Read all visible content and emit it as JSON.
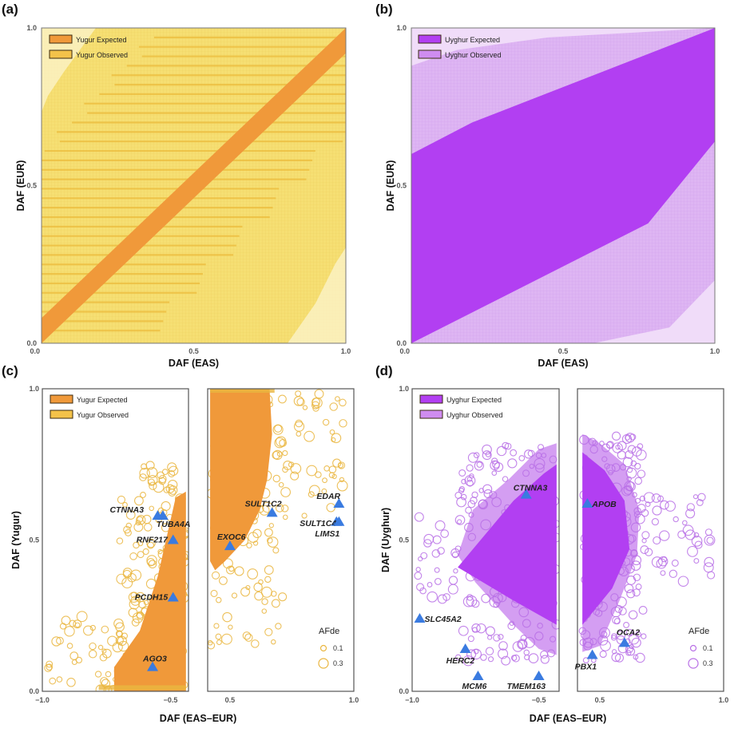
{
  "colors": {
    "yugur_expected": "#f0993a",
    "yugur_observed": "#f3c24a",
    "yugur_observed_bg": "#f7e27a",
    "uyghur_expected": "#b23ff2",
    "uyghur_observed": "#cf8cf0",
    "uyghur_observed_bg": "#e6c6f6",
    "gene_marker": "#3a7be0",
    "frame": "#666666"
  },
  "chart_data": [
    {
      "id": "a",
      "panel_label": "(a)",
      "type": "scatter",
      "title": "",
      "xlabel": "DAF (EAS)",
      "ylabel": "DAF (EUR)",
      "xlim": [
        0.0,
        1.0
      ],
      "ylim": [
        0.0,
        1.0
      ],
      "xticks": [
        "0.0",
        "0.5",
        "1.0"
      ],
      "yticks": [
        "0.0",
        "0.5",
        "1.0"
      ],
      "legend": {
        "placement": "top-left",
        "entries": [
          "Yugur Expected",
          "Yugur Observed"
        ]
      },
      "series": [
        {
          "name": "Yugur Expected",
          "kind": "band",
          "description": "diagonal band around y = x",
          "lower": [
            [
              0.0,
              0.0
            ],
            [
              1.0,
              0.92
            ]
          ],
          "upper": [
            [
              0.0,
              0.08
            ],
            [
              1.0,
              1.0
            ]
          ]
        },
        {
          "name": "Yugur Observed",
          "kind": "dense-cloud",
          "description": "fills nearly entire unit square, horizontal striations at discrete DAF(EUR) levels",
          "stripe_levels": [
            0.04,
            0.07,
            0.1,
            0.13,
            0.16,
            0.19,
            0.22,
            0.25,
            0.28,
            0.31,
            0.34,
            0.37,
            0.4,
            0.43,
            0.46,
            0.49,
            0.52,
            0.55,
            0.58,
            0.61,
            0.64,
            0.67,
            0.7,
            0.73,
            0.76,
            0.79,
            0.82,
            0.85,
            0.88,
            0.91,
            0.94,
            0.97
          ]
        }
      ]
    },
    {
      "id": "b",
      "panel_label": "(b)",
      "type": "scatter",
      "title": "",
      "xlabel": "DAF (EAS)",
      "ylabel": "DAF (EUR)",
      "xlim": [
        0.0,
        1.0
      ],
      "ylim": [
        0.0,
        1.0
      ],
      "xticks": [
        "0.0",
        "0.5",
        "1.0"
      ],
      "yticks": [
        "0.0",
        "0.5",
        "1.0"
      ],
      "legend": {
        "placement": "top-left",
        "entries": [
          "Uyghur Expected",
          "Uyghur Observed"
        ]
      },
      "series": [
        {
          "name": "Uyghur Expected",
          "kind": "band",
          "description": "wide band around y = x",
          "polygon": [
            [
              0.0,
              0.0
            ],
            [
              0.0,
              0.6
            ],
            [
              0.2,
              0.7
            ],
            [
              1.0,
              1.0
            ],
            [
              1.0,
              0.64
            ],
            [
              0.78,
              0.38
            ],
            [
              0.0,
              0.0
            ]
          ]
        },
        {
          "name": "Uyghur Observed",
          "kind": "dense-cloud",
          "description": "broader envelope around expected band",
          "polygon": [
            [
              0.0,
              0.0
            ],
            [
              0.0,
              0.88
            ],
            [
              0.15,
              0.93
            ],
            [
              0.45,
              0.97
            ],
            [
              1.0,
              1.0
            ],
            [
              1.0,
              0.2
            ],
            [
              0.85,
              0.05
            ],
            [
              0.6,
              0.0
            ]
          ]
        }
      ]
    },
    {
      "id": "c",
      "panel_label": "(c)",
      "type": "scatter",
      "title": "",
      "xlabel": "DAF (EAS–EUR)",
      "ylabel": "DAF (Yugur)",
      "subpanels": [
        {
          "xlim": [
            -1.0,
            -0.43
          ],
          "xticks": [
            "−1.0",
            "−0.5"
          ],
          "xtick_values": [
            -1.0,
            -0.5
          ]
        },
        {
          "xlim": [
            0.41,
            1.0
          ],
          "xticks": [
            "0.5",
            "1.0"
          ],
          "xtick_values": [
            0.5,
            1.0
          ]
        }
      ],
      "ylim": [
        0.0,
        1.0
      ],
      "yticks": [
        "0.0",
        "0.5",
        "1.0"
      ],
      "legend": {
        "placement": "top-left",
        "entries": [
          "Yugur Expected",
          "Yugur Observed"
        ]
      },
      "size_legend": {
        "title": "AFde",
        "placement": "bottom-right",
        "entries": [
          {
            "label": "0.1",
            "value": 0.1
          },
          {
            "label": "0.3",
            "value": 0.3
          }
        ]
      },
      "expected_region": {
        "left": [
          [
            -0.72,
            0.0
          ],
          [
            -0.72,
            0.08
          ],
          [
            -0.62,
            0.2
          ],
          [
            -0.55,
            0.38
          ],
          [
            -0.48,
            0.64
          ],
          [
            -0.44,
            0.66
          ],
          [
            -0.44,
            0.0
          ]
        ],
        "right": [
          [
            0.42,
            1.0
          ],
          [
            0.66,
            1.0
          ],
          [
            0.67,
            0.85
          ],
          [
            0.65,
            0.7
          ],
          [
            0.62,
            0.6
          ],
          [
            0.56,
            0.5
          ],
          [
            0.48,
            0.43
          ],
          [
            0.44,
            0.4
          ],
          [
            0.42,
            0.43
          ]
        ]
      },
      "genes": [
        {
          "name": "CTNNA3",
          "x": -0.55,
          "y": 0.58
        },
        {
          "name": "TUBA4A",
          "x": -0.53,
          "y": 0.58
        },
        {
          "name": "RNF217",
          "x": -0.49,
          "y": 0.5
        },
        {
          "name": "PCDH15",
          "x": -0.49,
          "y": 0.31
        },
        {
          "name": "AGO3",
          "x": -0.57,
          "y": 0.08
        },
        {
          "name": "SULT1C2",
          "x": 0.67,
          "y": 0.59
        },
        {
          "name": "EDAR",
          "x": 0.94,
          "y": 0.62
        },
        {
          "name": "SULT1C4",
          "x": 0.93,
          "y": 0.56
        },
        {
          "name": "LIMS1",
          "x": 0.94,
          "y": 0.56
        },
        {
          "name": "EXOC6",
          "x": 0.5,
          "y": 0.48
        }
      ]
    },
    {
      "id": "d",
      "panel_label": "(d)",
      "type": "scatter",
      "title": "",
      "xlabel": "DAF (EAS–EUR)",
      "ylabel": "DAF (Uyghur)",
      "subpanels": [
        {
          "xlim": [
            -1.0,
            -0.42
          ],
          "xticks": [
            "−1.0",
            "−0.5"
          ],
          "xtick_values": [
            -1.0,
            -0.5
          ]
        },
        {
          "xlim": [
            0.41,
            1.0
          ],
          "xticks": [
            "0.5",
            "1.0"
          ],
          "xtick_values": [
            0.5,
            1.0
          ]
        }
      ],
      "ylim": [
        0.0,
        1.0
      ],
      "yticks": [
        "0.0",
        "0.5",
        "1.0"
      ],
      "legend": {
        "placement": "top-left",
        "entries": [
          "Uyghur Expected",
          "Uyghur Observed"
        ]
      },
      "size_legend": {
        "title": "AFde",
        "placement": "bottom-right",
        "entries": [
          {
            "label": "0.1",
            "value": 0.1
          },
          {
            "label": "0.3",
            "value": 0.3
          }
        ]
      },
      "expected_region": {
        "left": [
          [
            -0.43,
            0.22
          ],
          [
            -0.6,
            0.3
          ],
          [
            -0.82,
            0.41
          ],
          [
            -0.6,
            0.63
          ],
          [
            -0.48,
            0.72
          ],
          [
            -0.43,
            0.75
          ]
        ],
        "right": [
          [
            0.43,
            0.22
          ],
          [
            0.55,
            0.34
          ],
          [
            0.62,
            0.47
          ],
          [
            0.6,
            0.63
          ],
          [
            0.52,
            0.73
          ],
          [
            0.43,
            0.79
          ]
        ]
      },
      "observed_region": {
        "left": [
          [
            -0.43,
            0.12
          ],
          [
            -0.5,
            0.14
          ],
          [
            -0.6,
            0.22
          ],
          [
            -0.75,
            0.36
          ],
          [
            -0.82,
            0.45
          ],
          [
            -0.76,
            0.6
          ],
          [
            -0.62,
            0.7
          ],
          [
            -0.5,
            0.8
          ],
          [
            -0.43,
            0.82
          ]
        ],
        "right": [
          [
            0.43,
            0.13
          ],
          [
            0.5,
            0.15
          ],
          [
            0.58,
            0.3
          ],
          [
            0.65,
            0.45
          ],
          [
            0.66,
            0.6
          ],
          [
            0.6,
            0.75
          ],
          [
            0.5,
            0.82
          ],
          [
            0.43,
            0.85
          ]
        ]
      },
      "genes": [
        {
          "name": "CTNNA3",
          "x": -0.55,
          "y": 0.65
        },
        {
          "name": "SLC45A2",
          "x": -0.97,
          "y": 0.24
        },
        {
          "name": "HERC2",
          "x": -0.79,
          "y": 0.14
        },
        {
          "name": "MCM6",
          "x": -0.74,
          "y": 0.05
        },
        {
          "name": "TMEM163",
          "x": -0.5,
          "y": 0.05
        },
        {
          "name": "APOB",
          "x": 0.45,
          "y": 0.62
        },
        {
          "name": "OCA2",
          "x": 0.6,
          "y": 0.16
        },
        {
          "name": "PBX1",
          "x": 0.47,
          "y": 0.12
        }
      ]
    }
  ]
}
